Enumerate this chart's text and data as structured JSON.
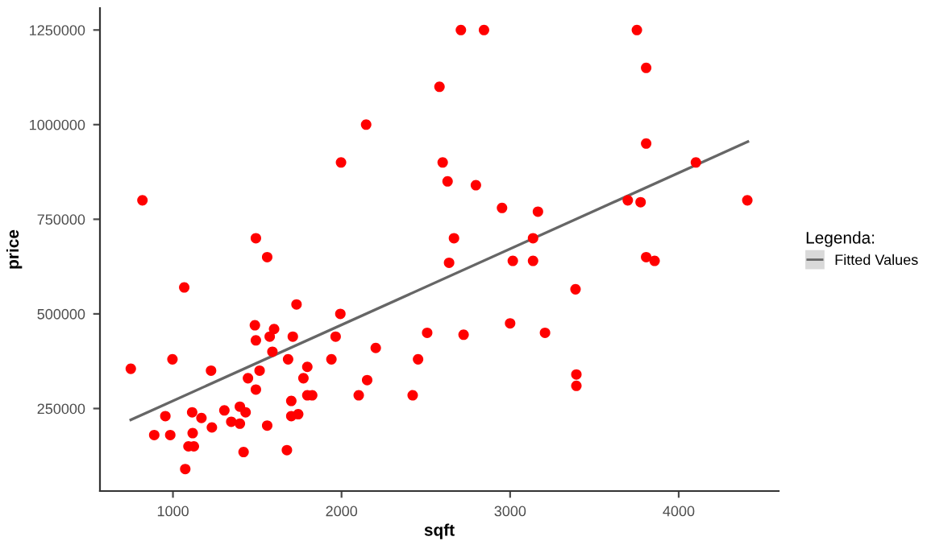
{
  "chart_data": {
    "type": "scatter",
    "xlabel": "sqft",
    "ylabel": "price",
    "legend_title": "Legenda:",
    "legend": "right",
    "grid": false,
    "xlim": [
      567,
      4593
    ],
    "ylim": [
      32000,
      1308000
    ],
    "xticks": [
      1000,
      2000,
      3000,
      4000
    ],
    "yticks": [
      250000,
      500000,
      750000,
      1000000,
      1250000
    ],
    "series": [
      {
        "color": "#ff0000",
        "marker": "circle",
        "x": [
          750,
          1067,
          997,
          955,
          889,
          984,
          1114,
          1117,
          1092,
          1124,
          1073,
          1169,
          1226,
          1231,
          1305,
          1346,
          1397,
          1397,
          1431,
          1419,
          1445,
          1492,
          1514,
          1486,
          1492,
          1559,
          1574,
          1600,
          1590,
          1559,
          1676,
          1683,
          1711,
          1733,
          1702,
          1702,
          1743,
          1774,
          1797,
          1797,
          1826,
          1940,
          1965,
          1993,
          2102,
          2152,
          2203,
          2422,
          2454,
          2508,
          2638,
          819,
          1492,
          1997,
          2146,
          2581,
          2600,
          2629,
          2708,
          2845,
          2797,
          2952,
          3165,
          2667,
          3016,
          3136,
          3136,
          3752,
          3807,
          3807,
          4102,
          3698,
          3774,
          4407,
          3807,
          3857,
          3388,
          2724,
          3000,
          3207,
          3393,
          3393
        ],
        "values": [
          355000,
          570000,
          380000,
          230000,
          180000,
          180000,
          240000,
          185000,
          150000,
          150000,
          90000,
          225000,
          350000,
          200000,
          245000,
          215000,
          255000,
          210000,
          240000,
          135000,
          330000,
          300000,
          350000,
          470000,
          430000,
          650000,
          440000,
          460000,
          400000,
          205000,
          140000,
          380000,
          440000,
          525000,
          270000,
          230000,
          235000,
          330000,
          360000,
          285000,
          285000,
          380000,
          440000,
          500000,
          285000,
          325000,
          410000,
          285000,
          380000,
          450000,
          635000,
          800000,
          700000,
          900000,
          1000000,
          1100000,
          900000,
          850000,
          1250000,
          1250000,
          840000,
          780000,
          770000,
          700000,
          640000,
          640000,
          700000,
          1250000,
          1150000,
          950000,
          900000,
          800000,
          795000,
          800000,
          650000,
          640000,
          565000,
          445000,
          475000,
          450000,
          340000,
          310000
        ]
      },
      {
        "type": "line",
        "name": "Fitted Values",
        "color": "#666666",
        "line_style": "solid",
        "x": [
          750,
          4410
        ],
        "values": [
          220000,
          955000
        ]
      }
    ]
  }
}
